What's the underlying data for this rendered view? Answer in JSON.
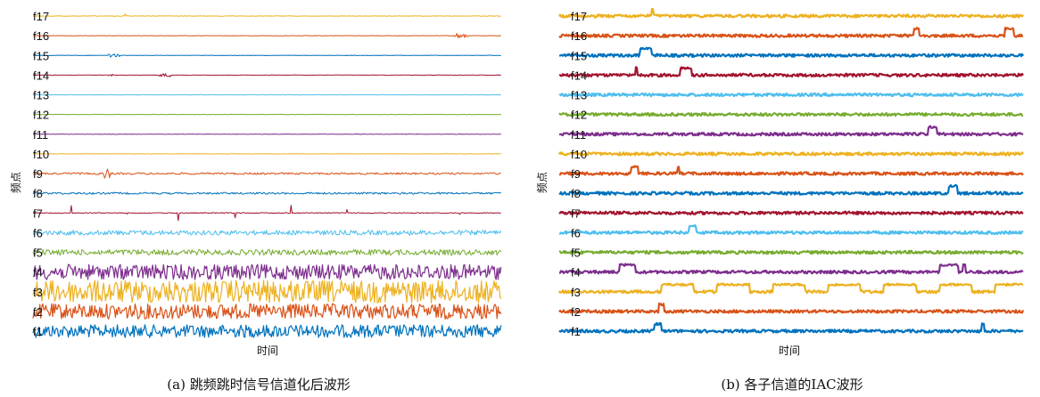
{
  "chart_data": [
    {
      "type": "line",
      "title": "",
      "caption": "(a) 跳频跳时信号信道化后波形",
      "xlabel": "时间",
      "ylabel": "频点",
      "categories": [
        "f1",
        "f2",
        "f3",
        "f4",
        "f5",
        "f6",
        "f7",
        "f8",
        "f9",
        "f10",
        "f11",
        "f12",
        "f13",
        "f14",
        "f15",
        "f16",
        "f17"
      ],
      "grid": false,
      "series": [
        {
          "channel": "f1",
          "color": "#0072BD",
          "noise": 0.8,
          "events": []
        },
        {
          "channel": "f2",
          "color": "#D95319",
          "noise": 0.95,
          "events": []
        },
        {
          "channel": "f3",
          "color": "#EDB120",
          "noise": 1.4,
          "events": []
        },
        {
          "channel": "f4",
          "color": "#7E2F8E",
          "noise": 0.95,
          "events": []
        },
        {
          "channel": "f5",
          "color": "#77AC30",
          "noise": 0.35,
          "events": []
        },
        {
          "channel": "f6",
          "color": "#4DBEEE",
          "noise": 0.3,
          "events": []
        },
        {
          "channel": "f7",
          "color": "#A2142F",
          "noise": 0.05,
          "events": [
            {
              "at": 0.08,
              "w": 0.002,
              "h": 0.9
            },
            {
              "at": 0.2,
              "w": 0.002,
              "h": 1.0
            },
            {
              "at": 0.31,
              "w": 0.002,
              "h": 0.7
            },
            {
              "at": 0.43,
              "w": 0.002,
              "h": 0.8
            },
            {
              "at": 0.55,
              "w": 0.002,
              "h": 0.8
            },
            {
              "at": 0.67,
              "w": 0.002,
              "h": 0.9
            },
            {
              "at": 0.79,
              "w": 0.002,
              "h": 0.8
            },
            {
              "at": 0.91,
              "w": 0.002,
              "h": 1.0
            }
          ]
        },
        {
          "channel": "f8",
          "color": "#0072BD",
          "noise": 0.12,
          "events": []
        },
        {
          "channel": "f9",
          "color": "#D95319",
          "noise": 0.12,
          "events": [
            {
              "at": 0.15,
              "w": 0.015,
              "h": 0.3
            }
          ]
        },
        {
          "channel": "f10",
          "color": "#EDB120",
          "noise": 0.03,
          "events": []
        },
        {
          "channel": "f11",
          "color": "#7E2F8E",
          "noise": 0.03,
          "events": []
        },
        {
          "channel": "f12",
          "color": "#77AC30",
          "noise": 0.03,
          "events": []
        },
        {
          "channel": "f13",
          "color": "#4DBEEE",
          "noise": 0.03,
          "events": []
        },
        {
          "channel": "f14",
          "color": "#A2142F",
          "noise": 0.03,
          "events": [
            {
              "at": 0.16,
              "w": 0.01,
              "h": 0.1
            },
            {
              "at": 0.27,
              "w": 0.025,
              "h": 0.12
            }
          ]
        },
        {
          "channel": "f15",
          "color": "#0072BD",
          "noise": 0.03,
          "events": [
            {
              "at": 0.16,
              "w": 0.025,
              "h": 0.12
            }
          ]
        },
        {
          "channel": "f16",
          "color": "#D95319",
          "noise": 0.03,
          "events": [
            {
              "at": 0.9,
              "w": 0.03,
              "h": 0.2
            }
          ]
        },
        {
          "channel": "f17",
          "color": "#EDB120",
          "noise": 0.03,
          "events": [
            {
              "at": 0.195,
              "w": 0.003,
              "h": 0.3
            }
          ]
        }
      ]
    },
    {
      "type": "line",
      "title": "",
      "caption": "(b) 各子信道的IAC波形",
      "xlabel": "时间",
      "ylabel": "频点",
      "categories": [
        "f1",
        "f2",
        "f3",
        "f4",
        "f5",
        "f6",
        "f7",
        "f8",
        "f9",
        "f10",
        "f11",
        "f12",
        "f13",
        "f14",
        "f15",
        "f16",
        "f17"
      ],
      "grid": false,
      "series": [
        {
          "channel": "f1",
          "color": "#0072BD",
          "events": [
            {
              "at": 0.205,
              "w": 0.015
            },
            {
              "at": 0.91,
              "w": 0.006
            }
          ]
        },
        {
          "channel": "f2",
          "color": "#D95319",
          "events": [
            {
              "at": 0.215,
              "w": 0.01
            }
          ]
        },
        {
          "channel": "f3",
          "color": "#EDB120",
          "events": [
            {
              "at": 0.22,
              "w": 0.07
            },
            {
              "at": 0.34,
              "w": 0.07
            },
            {
              "at": 0.46,
              "w": 0.07
            },
            {
              "at": 0.58,
              "w": 0.07
            },
            {
              "at": 0.7,
              "w": 0.07
            },
            {
              "at": 0.82,
              "w": 0.07
            },
            {
              "at": 0.94,
              "w": 0.06
            }
          ]
        },
        {
          "channel": "f4",
          "color": "#7E2F8E",
          "events": [
            {
              "at": 0.13,
              "w": 0.035
            },
            {
              "at": 0.82,
              "w": 0.04
            },
            {
              "at": 0.87,
              "w": 0.006
            }
          ]
        },
        {
          "channel": "f5",
          "color": "#77AC30",
          "events": []
        },
        {
          "channel": "f6",
          "color": "#4DBEEE",
          "events": [
            {
              "at": 0.28,
              "w": 0.015
            }
          ]
        },
        {
          "channel": "f7",
          "color": "#A2142F",
          "events": []
        },
        {
          "channel": "f8",
          "color": "#0072BD",
          "events": [
            {
              "at": 0.84,
              "w": 0.018
            }
          ]
        },
        {
          "channel": "f9",
          "color": "#D95319",
          "events": [
            {
              "at": 0.155,
              "w": 0.015
            },
            {
              "at": 0.255,
              "w": 0.004
            }
          ]
        },
        {
          "channel": "f10",
          "color": "#EDB120",
          "events": []
        },
        {
          "channel": "f11",
          "color": "#7E2F8E",
          "events": [
            {
              "at": 0.795,
              "w": 0.02
            }
          ]
        },
        {
          "channel": "f12",
          "color": "#77AC30",
          "events": []
        },
        {
          "channel": "f13",
          "color": "#4DBEEE",
          "events": []
        },
        {
          "channel": "f14",
          "color": "#A2142F",
          "events": [
            {
              "at": 0.165,
              "w": 0.004
            },
            {
              "at": 0.26,
              "w": 0.025
            }
          ]
        },
        {
          "channel": "f15",
          "color": "#0072BD",
          "events": [
            {
              "at": 0.175,
              "w": 0.025
            }
          ]
        },
        {
          "channel": "f16",
          "color": "#D95319",
          "events": [
            {
              "at": 0.765,
              "w": 0.01
            },
            {
              "at": 0.96,
              "w": 0.02
            }
          ]
        },
        {
          "channel": "f17",
          "color": "#EDB120",
          "events": [
            {
              "at": 0.2,
              "w": 0.003
            }
          ]
        }
      ]
    }
  ]
}
